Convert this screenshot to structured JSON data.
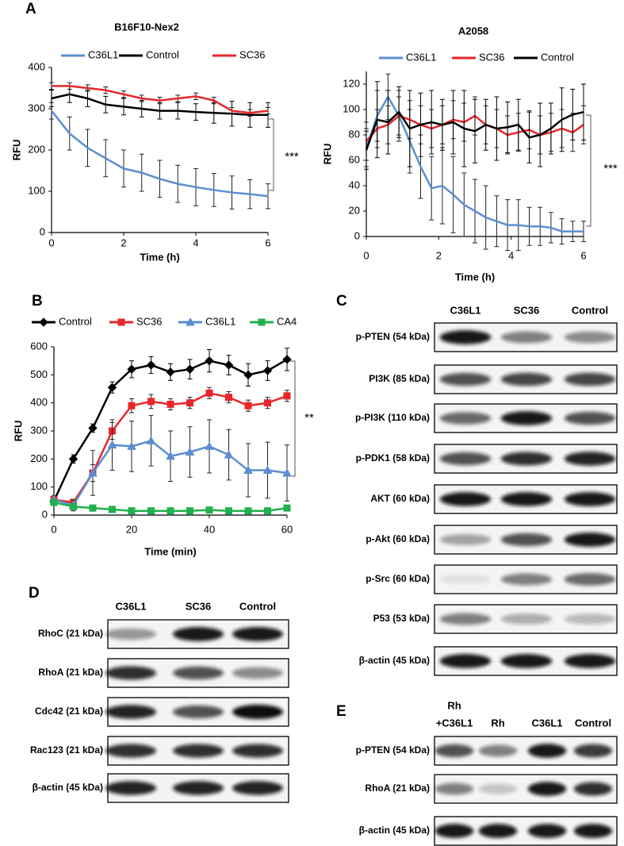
{
  "panels": [
    "A",
    "B",
    "C",
    "D",
    "E"
  ],
  "chart_data": [
    {
      "type": "line",
      "title": "B16F10-Nex2",
      "xlabel": "Time (h)",
      "ylabel": "RFU",
      "annotation": "***",
      "x": [
        0,
        0.5,
        1,
        1.5,
        2,
        2.5,
        3,
        3.5,
        4,
        4.5,
        5,
        5.5,
        6
      ],
      "series": [
        {
          "name": "C36L1",
          "color": "#5b8ed0",
          "values": [
            295,
            240,
            205,
            180,
            155,
            145,
            130,
            118,
            110,
            103,
            97,
            93,
            88
          ],
          "errors": [
            20,
            40,
            45,
            45,
            45,
            45,
            45,
            45,
            45,
            40,
            40,
            35,
            30
          ]
        },
        {
          "name": "Control",
          "color": "#000000",
          "values": [
            325,
            335,
            325,
            310,
            305,
            300,
            295,
            295,
            292,
            290,
            288,
            285,
            285
          ],
          "errors": [
            20,
            20,
            20,
            20,
            20,
            20,
            20,
            20,
            20,
            25,
            30,
            30,
            30
          ]
        },
        {
          "name": "SC36",
          "color": "#e8262a",
          "values": [
            355,
            355,
            350,
            345,
            335,
            325,
            320,
            325,
            330,
            320,
            295,
            290,
            295
          ],
          "errors": [
            8,
            8,
            8,
            8,
            8,
            8,
            8,
            8,
            8,
            8,
            8,
            8,
            8
          ]
        }
      ],
      "xlim": [
        0,
        6
      ],
      "ylim": [
        0,
        400
      ],
      "xticks": [
        0,
        2,
        4,
        6
      ],
      "yticks": [
        0,
        100,
        200,
        300,
        400
      ],
      "legend": "top"
    },
    {
      "type": "line",
      "title": "A2058",
      "xlabel": "Time (h)",
      "ylabel": "RFU",
      "annotation": "***",
      "x": [
        0,
        0.3,
        0.6,
        0.9,
        1.2,
        1.5,
        1.8,
        2.1,
        2.4,
        2.7,
        3,
        3.3,
        3.6,
        3.9,
        4.2,
        4.5,
        4.8,
        5.1,
        5.4,
        5.7,
        6
      ],
      "series": [
        {
          "name": "C36L1",
          "color": "#5b8ed0",
          "values": [
            70,
            95,
            110,
            95,
            75,
            55,
            38,
            40,
            33,
            25,
            20,
            15,
            12,
            9,
            9,
            8,
            8,
            7,
            4,
            4,
            4
          ],
          "errors": [
            15,
            20,
            18,
            20,
            25,
            25,
            25,
            30,
            30,
            25,
            25,
            25,
            20,
            20,
            20,
            15,
            15,
            12,
            10,
            8,
            8
          ]
        },
        {
          "name": "SC36",
          "color": "#e8262a",
          "values": [
            75,
            85,
            88,
            95,
            92,
            88,
            85,
            88,
            92,
            90,
            95,
            88,
            85,
            80,
            82,
            84,
            80,
            82,
            85,
            82,
            88
          ],
          "errors": [
            15,
            15,
            15,
            15,
            15,
            15,
            15,
            15,
            15,
            15,
            15,
            15,
            15,
            15,
            15,
            15,
            15,
            15,
            15,
            15,
            15
          ]
        },
        {
          "name": "Control",
          "color": "#000000",
          "values": [
            68,
            92,
            90,
            98,
            85,
            88,
            90,
            88,
            90,
            85,
            83,
            88,
            85,
            86,
            88,
            78,
            80,
            85,
            92,
            96,
            98
          ],
          "errors": [
            15,
            30,
            25,
            20,
            30,
            25,
            25,
            20,
            25,
            30,
            25,
            20,
            25,
            20,
            20,
            20,
            25,
            20,
            25,
            20,
            22
          ]
        }
      ],
      "xlim": [
        0,
        6
      ],
      "ylim": [
        0,
        130
      ],
      "xticks": [
        0,
        2,
        4,
        6
      ],
      "yticks": [
        0,
        20,
        40,
        60,
        80,
        100,
        120
      ],
      "legend": "top"
    },
    {
      "type": "line",
      "xlabel": "Time (min)",
      "ylabel": "RFU",
      "annotation": "**",
      "x": [
        0,
        5,
        10,
        15,
        20,
        25,
        30,
        35,
        40,
        45,
        50,
        55,
        60
      ],
      "series": [
        {
          "name": "Control",
          "color": "#000000",
          "marker": "diamond",
          "values": [
            50,
            200,
            310,
            455,
            520,
            535,
            510,
            520,
            550,
            535,
            500,
            515,
            555
          ],
          "errors": [
            10,
            15,
            15,
            20,
            30,
            30,
            30,
            35,
            40,
            35,
            40,
            35,
            40
          ]
        },
        {
          "name": "SC36",
          "color": "#e8262a",
          "marker": "square",
          "values": [
            55,
            45,
            150,
            300,
            390,
            405,
            395,
            400,
            435,
            420,
            390,
            400,
            425
          ],
          "errors": [
            10,
            10,
            30,
            30,
            25,
            25,
            20,
            20,
            20,
            20,
            20,
            20,
            20
          ]
        },
        {
          "name": "C36L1",
          "color": "#5b8ed0",
          "marker": "triangle",
          "values": [
            55,
            35,
            150,
            250,
            245,
            265,
            210,
            225,
            245,
            215,
            160,
            160,
            150
          ],
          "errors": [
            15,
            20,
            80,
            90,
            90,
            90,
            90,
            90,
            95,
            90,
            95,
            100,
            100
          ]
        },
        {
          "name": "CA4",
          "color": "#21b04b",
          "marker": "square",
          "values": [
            45,
            30,
            25,
            20,
            15,
            15,
            15,
            15,
            18,
            15,
            15,
            15,
            25
          ],
          "errors": [
            10,
            10,
            10,
            10,
            10,
            10,
            10,
            10,
            10,
            10,
            10,
            10,
            10
          ]
        }
      ],
      "xlim": [
        0,
        60
      ],
      "ylim": [
        0,
        600
      ],
      "xticks": [
        0,
        20,
        40,
        60
      ],
      "yticks": [
        0,
        100,
        200,
        300,
        400,
        500,
        600
      ],
      "legend": "top"
    }
  ],
  "blots": [
    {
      "lanes": [
        "C36L1",
        "SC36",
        "Control"
      ],
      "rows": [
        "p-PTEN (54 kDa)",
        "PI3K (85 kDa)",
        "p-PI3K (110 kDa)",
        "p-PDK1 (58 kDa)",
        "AKT (60 kDa)",
        "p-Akt (60 kDa)",
        "p-Src (60 kDa)",
        "P53 (53 kDa)",
        "β-actin (45 kDa)"
      ]
    },
    {
      "lanes": [
        "C36L1",
        "SC36",
        "Control"
      ],
      "rows": [
        "RhoC (21 kDa)",
        "RhoA (21 kDa)",
        "Cdc42 (21 kDa)",
        "Rac123 (21 kDa)",
        "β-actin (45 kDa)"
      ]
    },
    {
      "lanes": [
        [
          "Rh",
          "+C36L1"
        ],
        [
          "Rh"
        ],
        [
          "C36L1"
        ],
        [
          "Control"
        ]
      ],
      "rows": [
        "p-PTEN (54 kDa)",
        "RhoA (21 kDa)",
        "β-actin (45 kDa)"
      ]
    }
  ]
}
